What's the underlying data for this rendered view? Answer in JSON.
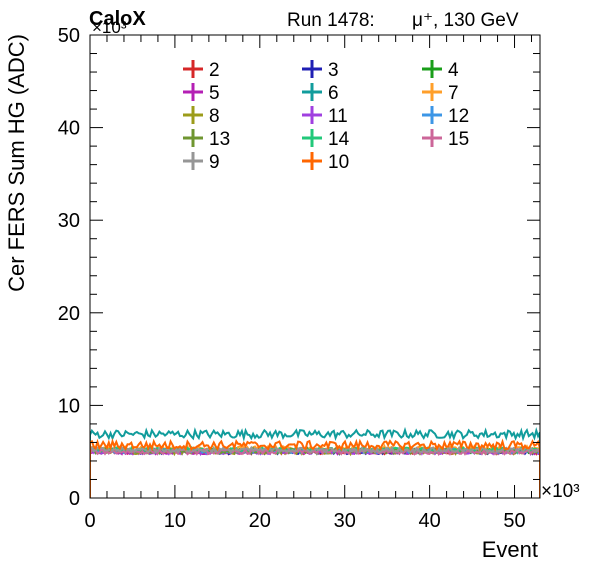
{
  "chart_data": {
    "type": "line",
    "logo": "CaloX",
    "run_label": "Run 1478:",
    "beam_label": "μ⁺, 130 GeV",
    "xlabel": "Event",
    "ylabel": "Cer FERS Sum HG (ADC)",
    "x_multiplier": "×10³",
    "y_multiplier": "×10³",
    "xlim": [
      0,
      53
    ],
    "ylim": [
      0,
      50
    ],
    "x_ticks": [
      0,
      10,
      20,
      30,
      40,
      50
    ],
    "y_ticks": [
      0,
      10,
      20,
      30,
      40,
      50
    ],
    "x_tick_labels": [
      "0",
      "10",
      "20",
      "30",
      "40",
      "50"
    ],
    "y_tick_labels": [
      "0",
      "10",
      "20",
      "30",
      "40",
      "50"
    ],
    "legend_placement": "top",
    "series": [
      {
        "name": "2",
        "color": "#d62728",
        "level": 5.0,
        "spread": 0.25
      },
      {
        "name": "3",
        "color": "#1f1fb4",
        "level": 5.0,
        "spread": 0.25
      },
      {
        "name": "4",
        "color": "#1a9e1a",
        "level": 5.1,
        "spread": 0.25
      },
      {
        "name": "5",
        "color": "#b41fb4",
        "level": 5.0,
        "spread": 0.25
      },
      {
        "name": "6",
        "color": "#119c9c",
        "level": 6.9,
        "spread": 0.45
      },
      {
        "name": "7",
        "color": "#ff9f2a",
        "level": 5.3,
        "spread": 0.3
      },
      {
        "name": "8",
        "color": "#9c9c1a",
        "level": 5.0,
        "spread": 0.25
      },
      {
        "name": "11",
        "color": "#a040e0",
        "level": 5.0,
        "spread": 0.25
      },
      {
        "name": "12",
        "color": "#3c96e6",
        "level": 5.1,
        "spread": 0.25
      },
      {
        "name": "13",
        "color": "#6f9630",
        "level": 5.1,
        "spread": 0.25
      },
      {
        "name": "14",
        "color": "#22c87a",
        "level": 5.2,
        "spread": 0.25
      },
      {
        "name": "15",
        "color": "#cc6699",
        "level": 5.0,
        "spread": 0.25
      },
      {
        "name": "9",
        "color": "#969696",
        "level": 5.2,
        "spread": 0.25
      },
      {
        "name": "10",
        "color": "#ff6600",
        "level": 5.7,
        "spread": 0.45
      }
    ]
  }
}
